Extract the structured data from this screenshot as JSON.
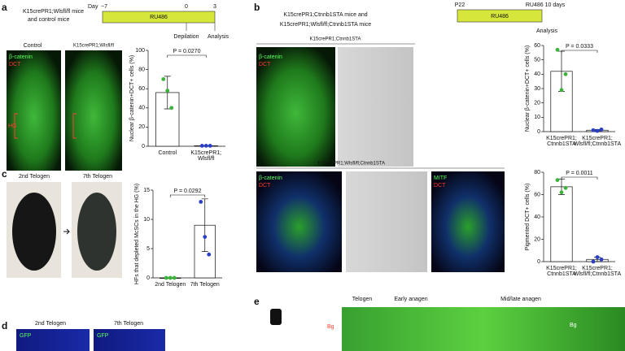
{
  "panels": {
    "a": {
      "label": "a",
      "mice": "K15crePR1;Wlsfl/fl mice",
      "mice2": "and control mice",
      "timeline": {
        "day": "Day",
        "start": "−7",
        "mid": "0",
        "end": "3",
        "drug": "RU486",
        "event1": "Depilation",
        "event2": "Analysis"
      },
      "images": [
        "Control",
        "K15crePR1;Wlsfl/fl"
      ],
      "stain1": "β-catenin",
      "stain2": "DCT",
      "region": "HG"
    },
    "b": {
      "label": "b",
      "mice": "K15crePR1;Ctnnb1STA mice and",
      "mice2": "K15crePR1;Wlsfl/fl;Ctnnb1STA mice",
      "timeline": {
        "start": "P22",
        "end": "RU486 10 days",
        "drug": "RU486",
        "event": "Analysis"
      },
      "header1": "K15crePR1;Ctnnb1STA",
      "header2": "K15crePR1;Wlsfl/fl;Ctnnb1STA",
      "stain1": "β-catenin",
      "stain2": "DCT",
      "stain3": "MITF"
    },
    "c": {
      "label": "c",
      "images": [
        "2nd Telogen",
        "7th Telogen"
      ]
    },
    "d": {
      "label": "d",
      "images": [
        "2nd Telogen",
        "7th Telogen"
      ],
      "stain": "GFP"
    },
    "e": {
      "label": "e",
      "stages": [
        "Telogen",
        "Early anagen",
        "Mid/late anagen"
      ],
      "region": "Bg"
    }
  },
  "chart_data": [
    {
      "type": "bar",
      "y_label": "Nuclear β-catenin+DCT+ cells (%)",
      "annotation": "P = 0.0270",
      "categories": [
        "Control",
        "K15crePR1;Wlsfl/fl"
      ],
      "values": [
        56,
        0.5
      ],
      "errors": [
        17,
        0.3
      ],
      "points": [
        [
          70,
          58,
          40
        ],
        [
          0.5,
          0.5,
          0.5
        ]
      ],
      "colors": [
        "#3cb43c",
        "#2a3fc8"
      ],
      "ylim": [
        0,
        100
      ],
      "yticks": [
        0,
        20,
        40,
        60,
        80,
        100
      ]
    },
    {
      "type": "bar",
      "y_label": "Nuclear β-catenin+DCT+ cells (%)",
      "annotation": "P = 0.0333",
      "categories": [
        "K15crePR1;Ctnnb1STA",
        "K15crePR1;Wlsfl/fl;Ctnnb1STA"
      ],
      "values": [
        42,
        1
      ],
      "errors": [
        14,
        0.5
      ],
      "points": [
        [
          57,
          29,
          40
        ],
        [
          1,
          0.5,
          1.5
        ]
      ],
      "colors": [
        "#3cb43c",
        "#2a3fc8"
      ],
      "ylim": [
        0,
        60
      ],
      "yticks": [
        0,
        10,
        20,
        30,
        40,
        50,
        60
      ]
    },
    {
      "type": "bar",
      "y_label": "Pigmented DCT+ cells (%)",
      "annotation": "P = 0.0011",
      "categories": [
        "K15crePR1;Ctnnb1STA",
        "K15crePR1;Wlsfl/fl;Ctnnb1STA"
      ],
      "values": [
        67,
        2
      ],
      "errors": [
        7,
        2
      ],
      "points": [
        [
          73,
          62,
          66
        ],
        [
          0,
          4,
          2
        ]
      ],
      "colors": [
        "#3cb43c",
        "#2a3fc8"
      ],
      "ylim": [
        0,
        80
      ],
      "yticks": [
        0,
        20,
        40,
        60,
        80
      ]
    },
    {
      "type": "bar",
      "y_label": "HFs that depleted McSCs in the HG (%)",
      "annotation": "P = 0.0292",
      "categories": [
        "2nd Telogen",
        "7th Telogen"
      ],
      "values": [
        0,
        9
      ],
      "errors": [
        0,
        4.5
      ],
      "points": [
        [
          0,
          0,
          0
        ],
        [
          13,
          7,
          4
        ]
      ],
      "colors": [
        "#3cb43c",
        "#2a3fc8"
      ],
      "ylim": [
        0,
        15
      ],
      "yticks": [
        0,
        5,
        10,
        15
      ]
    }
  ]
}
